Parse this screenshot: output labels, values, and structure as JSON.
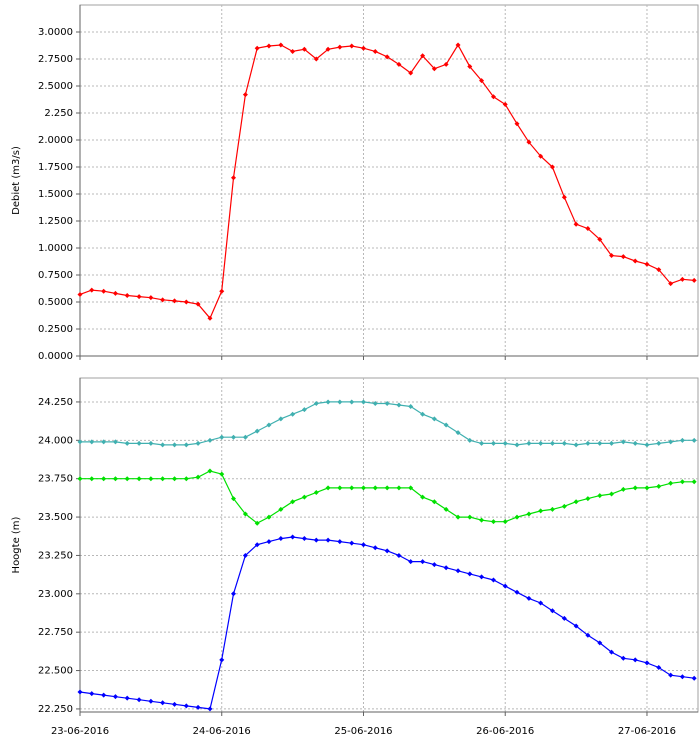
{
  "chart_data": [
    {
      "type": "line",
      "y_label": "Debiet (m3/s)",
      "ylim": [
        0,
        3.25
      ],
      "yticks": [
        {
          "value": 0,
          "label": "0.0000"
        },
        {
          "value": 0.25,
          "label": "0.2500"
        },
        {
          "value": 0.5,
          "label": "0.5000"
        },
        {
          "value": 0.75,
          "label": "0.7500"
        },
        {
          "value": 1,
          "label": "1.0000"
        },
        {
          "value": 1.25,
          "label": "1.2500"
        },
        {
          "value": 1.5,
          "label": "1.5000"
        },
        {
          "value": 1.75,
          "label": "1.7500"
        },
        {
          "value": 2,
          "label": "2.0000"
        },
        {
          "value": 2.25,
          "label": "2.250"
        },
        {
          "value": 2.5,
          "label": "2.5000"
        },
        {
          "value": 2.75,
          "label": "2.7500"
        },
        {
          "value": 3,
          "label": "3.0000"
        }
      ],
      "xlim": [
        0,
        4.36
      ],
      "grid": true,
      "x": [
        0,
        0.083,
        0.167,
        0.25,
        0.333,
        0.417,
        0.5,
        0.583,
        0.667,
        0.75,
        0.833,
        0.917,
        1,
        1.083,
        1.167,
        1.25,
        1.333,
        1.417,
        1.5,
        1.583,
        1.667,
        1.75,
        1.833,
        1.917,
        2,
        2.083,
        2.167,
        2.25,
        2.333,
        2.417,
        2.5,
        2.583,
        2.667,
        2.75,
        2.833,
        2.917,
        3,
        3.083,
        3.167,
        3.25,
        3.333,
        3.417,
        3.5,
        3.583,
        3.667,
        3.75,
        3.833,
        3.917,
        4,
        4.083,
        4.167,
        4.25,
        4.333
      ],
      "series": [
        {
          "color": "#ff0000",
          "values": [
            0.57,
            0.61,
            0.6,
            0.58,
            0.56,
            0.55,
            0.54,
            0.52,
            0.51,
            0.5,
            0.48,
            0.35,
            0.6,
            1.65,
            2.42,
            2.85,
            2.87,
            2.88,
            2.82,
            2.84,
            2.75,
            2.84,
            2.86,
            2.87,
            2.85,
            2.82,
            2.77,
            2.7,
            2.62,
            2.78,
            2.66,
            2.7,
            2.88,
            2.68,
            2.55,
            2.4,
            2.33,
            2.15,
            1.98,
            1.85,
            1.75,
            1.47,
            1.22,
            1.18,
            1.08,
            0.93,
            0.92,
            0.88,
            0.85,
            0.8,
            0.67,
            0.71,
            0.7
          ]
        }
      ]
    },
    {
      "type": "line",
      "y_label": "Hoogte (m)",
      "ylim": [
        22.23,
        24.406
      ],
      "yticks": [
        {
          "value": 22.25,
          "label": "22.250"
        },
        {
          "value": 22.5,
          "label": "22.500"
        },
        {
          "value": 22.75,
          "label": "22.750"
        },
        {
          "value": 23,
          "label": "23.000"
        },
        {
          "value": 23.25,
          "label": "23.250"
        },
        {
          "value": 23.5,
          "label": "23.500"
        },
        {
          "value": 23.75,
          "label": "23.750"
        },
        {
          "value": 24,
          "label": "24.000"
        },
        {
          "value": 24.25,
          "label": "24.250"
        }
      ],
      "xlim": [
        0,
        4.36
      ],
      "grid": true,
      "xticks": [
        {
          "value": 0,
          "label": "23-06-2016"
        },
        {
          "value": 1,
          "label": "24-06-2016"
        },
        {
          "value": 2,
          "label": "25-06-2016"
        },
        {
          "value": 3,
          "label": "26-06-2016"
        },
        {
          "value": 4,
          "label": "27-06-2016"
        }
      ],
      "x": [
        0,
        0.083,
        0.167,
        0.25,
        0.333,
        0.417,
        0.5,
        0.583,
        0.667,
        0.75,
        0.833,
        0.917,
        1,
        1.083,
        1.167,
        1.25,
        1.333,
        1.417,
        1.5,
        1.583,
        1.667,
        1.75,
        1.833,
        1.917,
        2,
        2.083,
        2.167,
        2.25,
        2.333,
        2.417,
        2.5,
        2.583,
        2.667,
        2.75,
        2.833,
        2.917,
        3,
        3.083,
        3.167,
        3.25,
        3.333,
        3.417,
        3.5,
        3.583,
        3.667,
        3.75,
        3.833,
        3.917,
        4,
        4.083,
        4.167,
        4.25,
        4.333
      ],
      "series": [
        {
          "color": "#40b0b0",
          "values": [
            23.99,
            23.99,
            23.99,
            23.99,
            23.98,
            23.98,
            23.98,
            23.97,
            23.97,
            23.97,
            23.98,
            24.0,
            24.02,
            24.02,
            24.02,
            24.06,
            24.1,
            24.14,
            24.17,
            24.2,
            24.24,
            24.25,
            24.25,
            24.25,
            24.25,
            24.24,
            24.24,
            24.23,
            24.22,
            24.17,
            24.14,
            24.1,
            24.05,
            24.0,
            23.98,
            23.98,
            23.98,
            23.97,
            23.98,
            23.98,
            23.98,
            23.98,
            23.97,
            23.98,
            23.98,
            23.98,
            23.99,
            23.98,
            23.97,
            23.98,
            23.99,
            24.0,
            24.0
          ]
        },
        {
          "color": "#00e000",
          "values": [
            23.75,
            23.75,
            23.75,
            23.75,
            23.75,
            23.75,
            23.75,
            23.75,
            23.75,
            23.75,
            23.76,
            23.8,
            23.78,
            23.62,
            23.52,
            23.46,
            23.5,
            23.55,
            23.6,
            23.63,
            23.66,
            23.69,
            23.69,
            23.69,
            23.69,
            23.69,
            23.69,
            23.69,
            23.69,
            23.63,
            23.6,
            23.55,
            23.5,
            23.5,
            23.48,
            23.47,
            23.47,
            23.5,
            23.52,
            23.54,
            23.55,
            23.57,
            23.6,
            23.62,
            23.64,
            23.65,
            23.68,
            23.69,
            23.69,
            23.7,
            23.72,
            23.73,
            23.73
          ]
        },
        {
          "color": "#0000ff",
          "values": [
            22.36,
            22.35,
            22.34,
            22.33,
            22.32,
            22.31,
            22.3,
            22.29,
            22.28,
            22.27,
            22.26,
            22.25,
            22.57,
            23.0,
            23.25,
            23.32,
            23.34,
            23.36,
            23.37,
            23.36,
            23.35,
            23.35,
            23.34,
            23.33,
            23.32,
            23.3,
            23.28,
            23.25,
            23.21,
            23.21,
            23.19,
            23.17,
            23.15,
            23.13,
            23.11,
            23.09,
            23.05,
            23.01,
            22.97,
            22.94,
            22.89,
            22.84,
            22.79,
            22.73,
            22.68,
            22.62,
            22.58,
            22.57,
            22.55,
            22.52,
            22.47,
            22.46,
            22.45
          ]
        }
      ]
    }
  ]
}
